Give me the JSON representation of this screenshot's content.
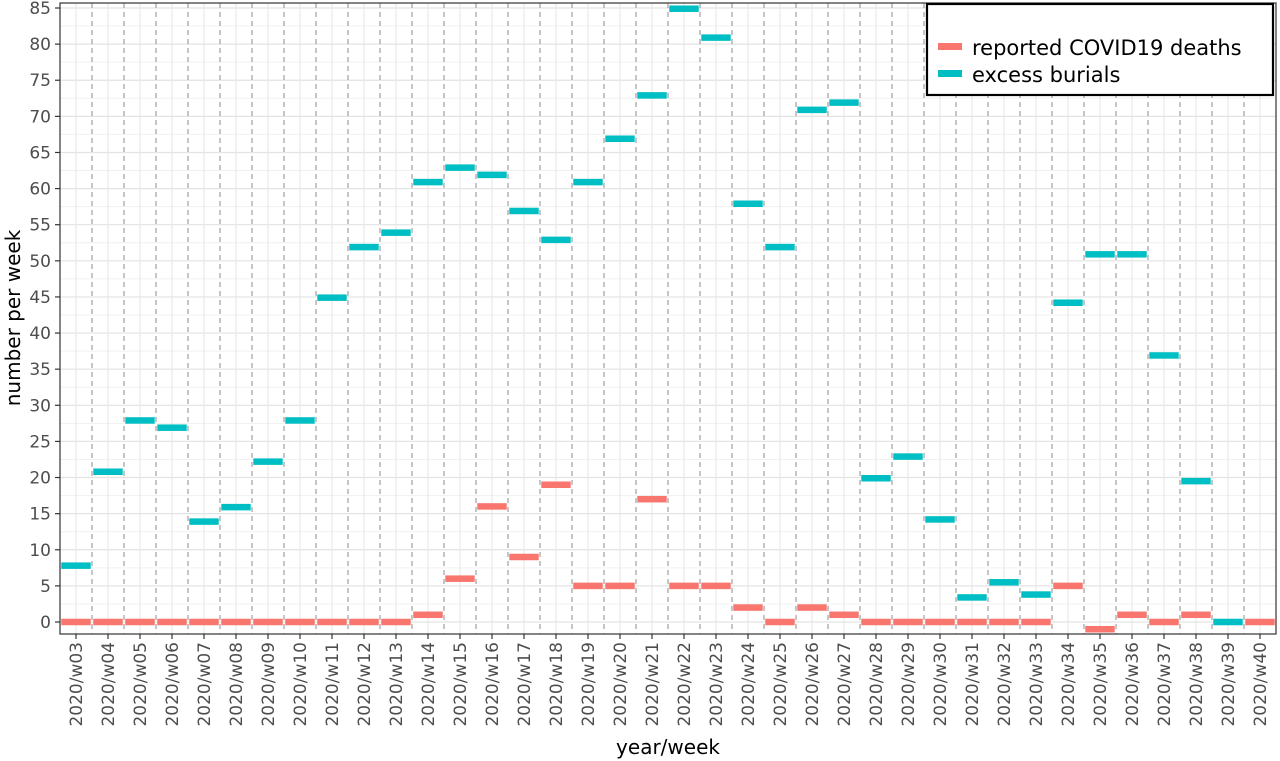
{
  "chart_data": {
    "type": "bar",
    "categories": [
      "2020/w03",
      "2020/w04",
      "2020/w05",
      "2020/w06",
      "2020/w07",
      "2020/w08",
      "2020/w09",
      "2020/w10",
      "2020/w11",
      "2020/w12",
      "2020/w13",
      "2020/w14",
      "2020/w15",
      "2020/w16",
      "2020/w17",
      "2020/w18",
      "2020/w19",
      "2020/w20",
      "2020/w21",
      "2020/w22",
      "2020/w23",
      "2020/w24",
      "2020/w25",
      "2020/w26",
      "2020/w27",
      "2020/w28",
      "2020/w29",
      "2020/w30",
      "2020/w31",
      "2020/w32",
      "2020/w33",
      "2020/w34",
      "2020/w35",
      "2020/w36",
      "2020/w37",
      "2020/w38",
      "2020/w39",
      "2020/w40"
    ],
    "series": [
      {
        "name": "reported COVID19 deaths",
        "color": "#F8766D",
        "values": [
          0,
          0,
          0,
          0,
          0,
          0,
          0,
          0,
          0,
          0,
          0,
          1,
          6,
          16,
          9,
          19,
          5,
          5,
          17,
          5,
          5,
          2,
          0,
          2,
          1,
          0,
          0,
          0,
          0,
          0,
          0,
          5,
          -1,
          1,
          0,
          1,
          null,
          0
        ]
      },
      {
        "name": "excess burials",
        "color": "#00BFC4",
        "values": [
          7.8,
          20.8,
          27.9,
          26.9,
          13.9,
          15.9,
          22.2,
          27.9,
          44.9,
          51.9,
          53.9,
          60.9,
          62.9,
          61.9,
          56.9,
          52.9,
          60.9,
          66.9,
          72.9,
          84.9,
          80.9,
          57.9,
          51.9,
          70.9,
          71.9,
          19.9,
          22.9,
          14.2,
          3.4,
          5.5,
          3.8,
          44.2,
          50.9,
          50.9,
          36.9,
          19.5,
          0,
          null
        ]
      }
    ],
    "xlabel": "year/week",
    "ylabel": "number per week",
    "yticks": [
      0,
      5,
      10,
      15,
      20,
      25,
      30,
      35,
      40,
      45,
      50,
      55,
      60,
      65,
      70,
      75,
      80,
      85
    ],
    "ylim": [
      -1.5,
      86
    ],
    "grid": true,
    "legend_position": "top-right"
  }
}
